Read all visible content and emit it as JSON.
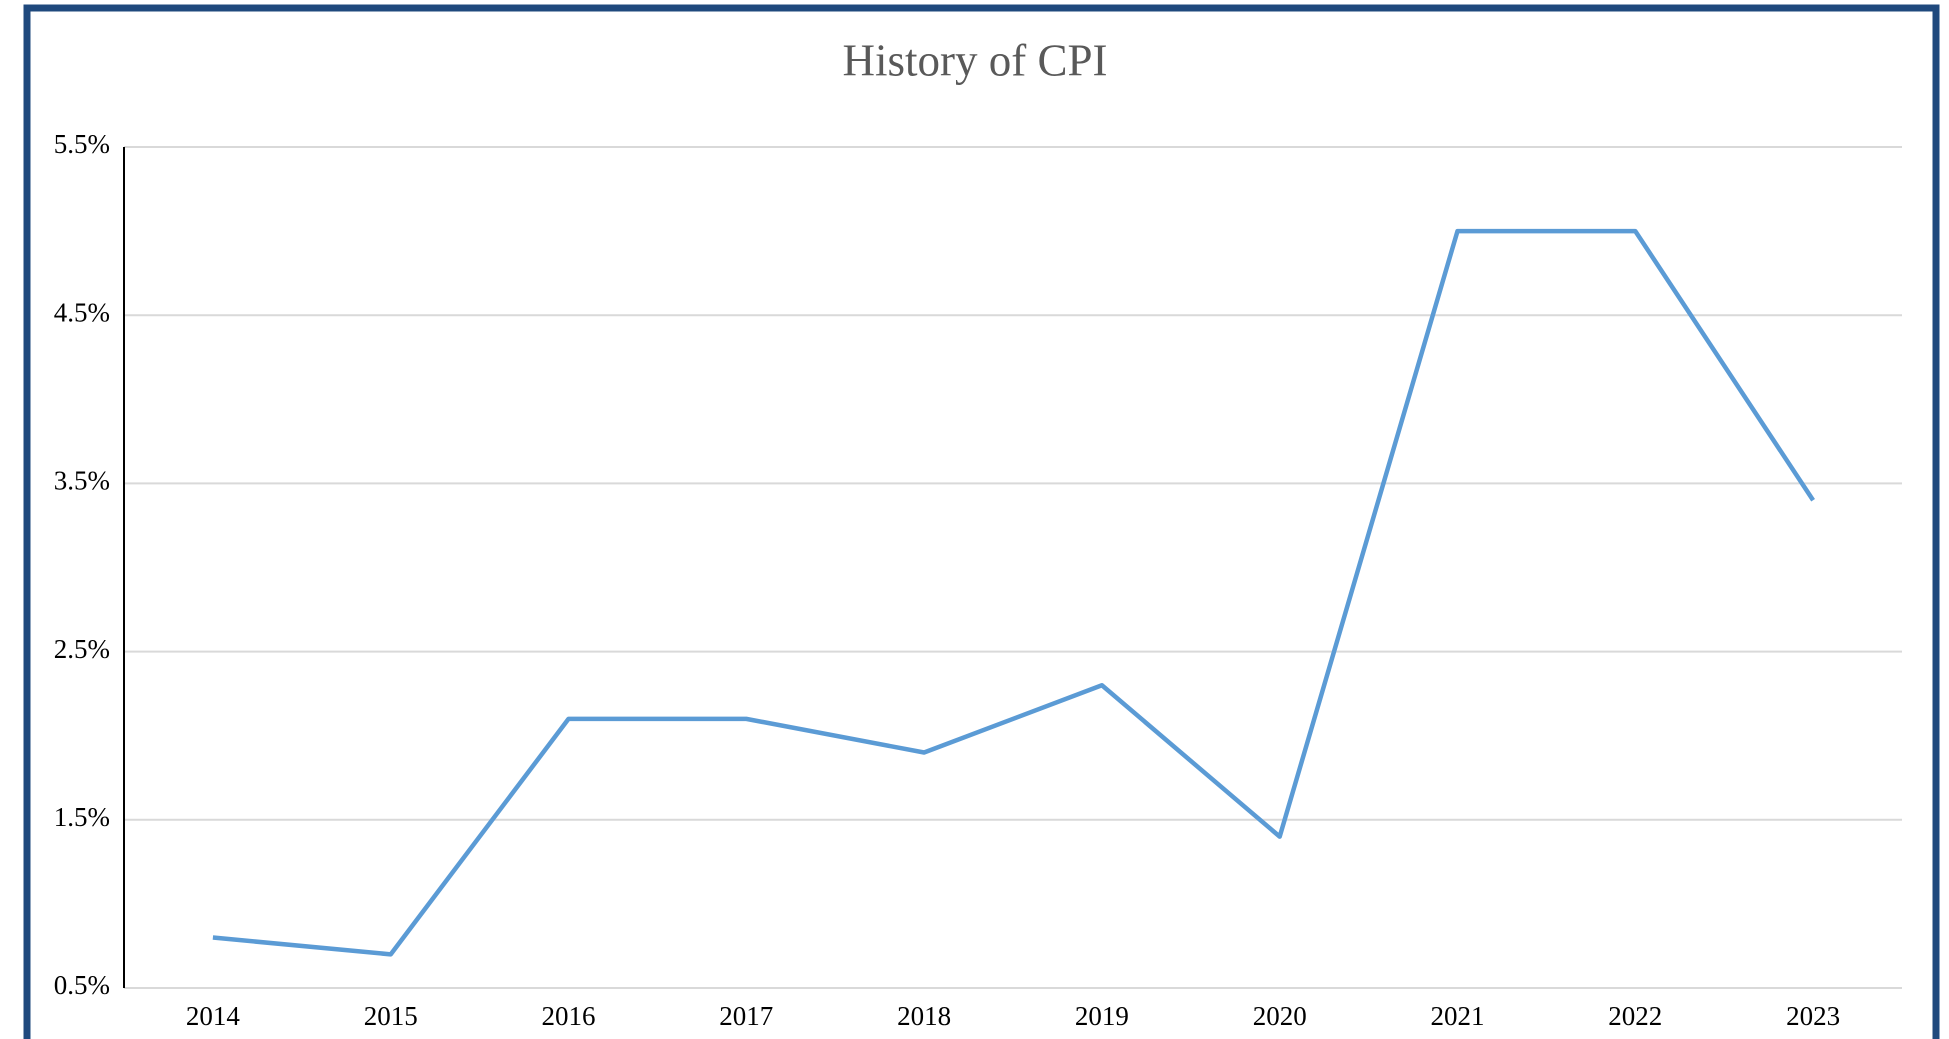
{
  "chart_data": {
    "type": "line",
    "title": "History of CPI",
    "categories": [
      "2014",
      "2015",
      "2016",
      "2017",
      "2018",
      "2019",
      "2020",
      "2021",
      "2022",
      "2023"
    ],
    "values": [
      0.8,
      0.7,
      2.1,
      2.1,
      1.9,
      2.3,
      1.4,
      5.0,
      5.0,
      3.4
    ],
    "color": "#5b9bd5",
    "ylim": [
      0.5,
      5.5
    ],
    "yticks": [
      {
        "value": 0.5,
        "label": "0.5%"
      },
      {
        "value": 1.5,
        "label": "1.5%"
      },
      {
        "value": 2.5,
        "label": "2.5%"
      },
      {
        "value": 3.5,
        "label": "3.5%"
      },
      {
        "value": 4.5,
        "label": "4.5%"
      },
      {
        "value": 5.5,
        "label": "5.5%"
      }
    ],
    "grid": true
  }
}
